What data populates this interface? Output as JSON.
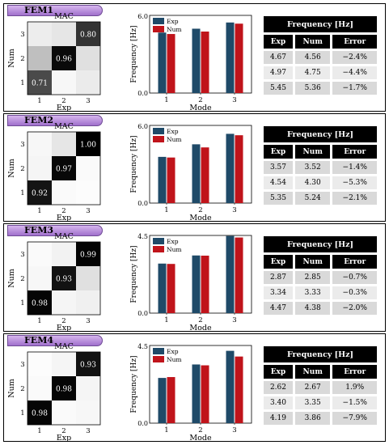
{
  "chart_data": [
    {
      "type": "heatmap",
      "tag": "FEM1",
      "mac": {
        "title": "MAC",
        "xlabel": "Exp",
        "ylabel": "Num",
        "ticks": [
          "1",
          "2",
          "3"
        ],
        "diagonal": [
          0.71,
          0.96,
          0.8
        ],
        "cells": [
          [
            0.71,
            0.03,
            0.08
          ],
          [
            0.25,
            0.96,
            0.12
          ],
          [
            0.07,
            0.1,
            0.8
          ]
        ]
      },
      "bar": {
        "type": "bar",
        "xlabel": "Mode",
        "ylabel": "Frequency [Hz]",
        "categories": [
          "1",
          "2",
          "3"
        ],
        "ylim": [
          0,
          6.0
        ],
        "yticks": [
          "0.0",
          "6.0"
        ],
        "series": [
          {
            "name": "Exp",
            "values": [
              4.67,
              4.97,
              5.45
            ]
          },
          {
            "name": "Num",
            "values": [
              4.56,
              4.75,
              5.36
            ]
          }
        ]
      },
      "table": {
        "title": "Frequency [Hz]",
        "headers": [
          "Exp",
          "Num",
          "Error"
        ],
        "rows": [
          [
            "4.67",
            "4.56",
            "−2.4%"
          ],
          [
            "4.97",
            "4.75",
            "−4.4%"
          ],
          [
            "5.45",
            "5.36",
            "−1.7%"
          ]
        ]
      }
    },
    {
      "type": "heatmap",
      "tag": "FEM2",
      "mac": {
        "title": "MAC",
        "xlabel": "Exp",
        "ylabel": "Num",
        "ticks": [
          "1",
          "2",
          "3"
        ],
        "diagonal": [
          0.92,
          0.97,
          1.0
        ],
        "cells": [
          [
            0.92,
            0.02,
            0.01
          ],
          [
            0.04,
            0.97,
            0.02
          ],
          [
            0.03,
            0.1,
            1.0
          ]
        ]
      },
      "bar": {
        "type": "bar",
        "xlabel": "Mode",
        "ylabel": "Frequency [Hz]",
        "categories": [
          "1",
          "2",
          "3"
        ],
        "ylim": [
          0,
          6.0
        ],
        "yticks": [
          "0.0",
          "6.0"
        ],
        "series": [
          {
            "name": "Exp",
            "values": [
              3.57,
              4.54,
              5.35
            ]
          },
          {
            "name": "Num",
            "values": [
              3.52,
              4.3,
              5.24
            ]
          }
        ]
      },
      "table": {
        "title": "Frequency [Hz]",
        "headers": [
          "Exp",
          "Num",
          "Error"
        ],
        "rows": [
          [
            "3.57",
            "3.52",
            "−1.4%"
          ],
          [
            "4.54",
            "4.30",
            "−5.3%"
          ],
          [
            "5.35",
            "5.24",
            "−2.1%"
          ]
        ]
      }
    },
    {
      "type": "heatmap",
      "tag": "FEM3",
      "mac": {
        "title": "MAC",
        "xlabel": "Exp",
        "ylabel": "Num",
        "ticks": [
          "1",
          "2",
          "3"
        ],
        "diagonal": [
          0.98,
          0.93,
          0.99
        ],
        "cells": [
          [
            0.98,
            0.04,
            0.06
          ],
          [
            0.03,
            0.93,
            0.12
          ],
          [
            0.02,
            0.05,
            0.99
          ]
        ]
      },
      "bar": {
        "type": "bar",
        "xlabel": "Mode",
        "ylabel": "Frequency [Hz]",
        "categories": [
          "1",
          "2",
          "3"
        ],
        "ylim": [
          0,
          4.5
        ],
        "yticks": [
          "0.0",
          "4.5"
        ],
        "series": [
          {
            "name": "Exp",
            "values": [
              2.87,
              3.34,
              4.47
            ]
          },
          {
            "name": "Num",
            "values": [
              2.85,
              3.33,
              4.38
            ]
          }
        ]
      },
      "table": {
        "title": "Frequency [Hz]",
        "headers": [
          "Exp",
          "Num",
          "Error"
        ],
        "rows": [
          [
            "2.87",
            "2.85",
            "−0.7%"
          ],
          [
            "3.34",
            "3.33",
            "−0.3%"
          ],
          [
            "4.47",
            "4.38",
            "−2.0%"
          ]
        ]
      }
    },
    {
      "type": "heatmap",
      "tag": "FEM4",
      "mac": {
        "title": "MAC",
        "xlabel": "Exp",
        "ylabel": "Num",
        "ticks": [
          "1",
          "2",
          "3"
        ],
        "diagonal": [
          0.98,
          0.98,
          0.93
        ],
        "cells": [
          [
            0.98,
            0.02,
            0.03
          ],
          [
            0.02,
            0.98,
            0.04
          ],
          [
            0.01,
            0.04,
            0.93
          ]
        ]
      },
      "bar": {
        "type": "bar",
        "xlabel": "Mode",
        "ylabel": "Frequency [Hz]",
        "categories": [
          "1",
          "2",
          "3"
        ],
        "ylim": [
          0,
          4.5
        ],
        "yticks": [
          "0.0",
          "4.5"
        ],
        "series": [
          {
            "name": "Exp",
            "values": [
              2.62,
              3.4,
              4.19
            ]
          },
          {
            "name": "Num",
            "values": [
              2.67,
              3.35,
              3.86
            ]
          }
        ]
      },
      "table": {
        "title": "Frequency [Hz]",
        "headers": [
          "Exp",
          "Num",
          "Error"
        ],
        "rows": [
          [
            "2.62",
            "2.67",
            "1.9%"
          ],
          [
            "3.40",
            "3.35",
            "−1.5%"
          ],
          [
            "4.19",
            "3.86",
            "−7.9%"
          ]
        ]
      }
    }
  ],
  "colors": {
    "exp": "#1f4a68",
    "num": "#c0141b",
    "tag_fill": "#b98de0",
    "header_bg": "#000000"
  }
}
